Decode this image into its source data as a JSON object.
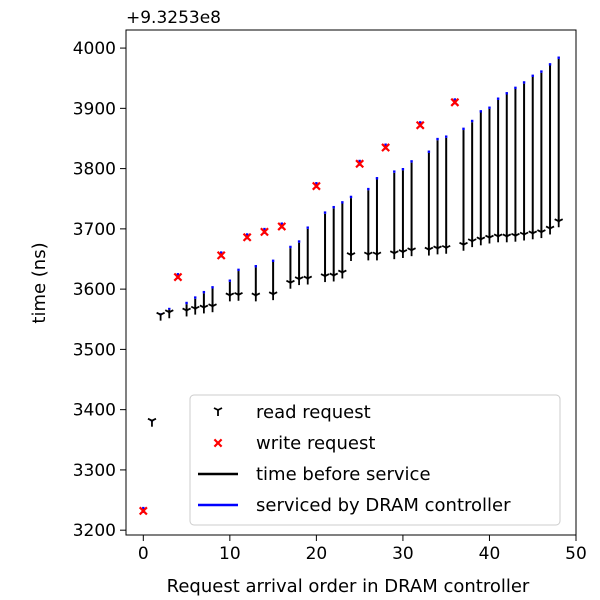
{
  "chart_data": {
    "type": "scatter",
    "title": "",
    "xlabel": "Request arrival order in DRAM controller",
    "ylabel": "time (ns)",
    "offset_label": "+9.3253e8",
    "xlim": [
      -2,
      50
    ],
    "ylim": [
      3192,
      4030
    ],
    "xticks": [
      0,
      10,
      20,
      30,
      40,
      50
    ],
    "yticks": [
      3200,
      3300,
      3400,
      3500,
      3600,
      3700,
      3800,
      3900,
      4000
    ],
    "grid": false,
    "legend_position": "lower-right",
    "legend": [
      {
        "label": "read request",
        "kind": "marker-read"
      },
      {
        "label": "write request",
        "kind": "marker-write"
      },
      {
        "label": "time before service",
        "kind": "line-black"
      },
      {
        "label": "serviced by DRAM controller",
        "kind": "line-blue"
      }
    ],
    "colors": {
      "read": "#000000",
      "write": "#ff0000",
      "wait_line": "#000000",
      "service_line": "#0000ff"
    },
    "read_requests": [
      {
        "x": 1,
        "arrival": 3380,
        "wait_end": 3380,
        "service_end": 3382
      },
      {
        "x": 2,
        "arrival": 3556,
        "wait_end": 3557,
        "service_end": 3560
      },
      {
        "x": 3,
        "arrival": 3560,
        "wait_end": 3566,
        "service_end": 3569
      },
      {
        "x": 5,
        "arrival": 3563,
        "wait_end": 3575,
        "service_end": 3579
      },
      {
        "x": 6,
        "arrival": 3566,
        "wait_end": 3584,
        "service_end": 3588
      },
      {
        "x": 7,
        "arrival": 3568,
        "wait_end": 3593,
        "service_end": 3597
      },
      {
        "x": 8,
        "arrival": 3570,
        "wait_end": 3601,
        "service_end": 3605
      },
      {
        "x": 10,
        "arrival": 3588,
        "wait_end": 3612,
        "service_end": 3616
      },
      {
        "x": 11,
        "arrival": 3589,
        "wait_end": 3630,
        "service_end": 3634
      },
      {
        "x": 13,
        "arrival": 3588,
        "wait_end": 3636,
        "service_end": 3640
      },
      {
        "x": 15,
        "arrival": 3590,
        "wait_end": 3645,
        "service_end": 3649
      },
      {
        "x": 17,
        "arrival": 3609,
        "wait_end": 3668,
        "service_end": 3672
      },
      {
        "x": 18,
        "arrival": 3615,
        "wait_end": 3677,
        "service_end": 3681
      },
      {
        "x": 19,
        "arrival": 3616,
        "wait_end": 3700,
        "service_end": 3704
      },
      {
        "x": 21,
        "arrival": 3620,
        "wait_end": 3725,
        "service_end": 3729
      },
      {
        "x": 22,
        "arrival": 3621,
        "wait_end": 3734,
        "service_end": 3738
      },
      {
        "x": 23,
        "arrival": 3626,
        "wait_end": 3742,
        "service_end": 3746
      },
      {
        "x": 24,
        "arrival": 3655,
        "wait_end": 3751,
        "service_end": 3755
      },
      {
        "x": 26,
        "arrival": 3656,
        "wait_end": 3764,
        "service_end": 3768
      },
      {
        "x": 27,
        "arrival": 3656,
        "wait_end": 3782,
        "service_end": 3786
      },
      {
        "x": 29,
        "arrival": 3658,
        "wait_end": 3793,
        "service_end": 3797
      },
      {
        "x": 30,
        "arrival": 3660,
        "wait_end": 3797,
        "service_end": 3801
      },
      {
        "x": 31,
        "arrival": 3663,
        "wait_end": 3810,
        "service_end": 3814
      },
      {
        "x": 33,
        "arrival": 3664,
        "wait_end": 3826,
        "service_end": 3830
      },
      {
        "x": 34,
        "arrival": 3666,
        "wait_end": 3847,
        "service_end": 3851
      },
      {
        "x": 35,
        "arrival": 3667,
        "wait_end": 3851,
        "service_end": 3855
      },
      {
        "x": 37,
        "arrival": 3672,
        "wait_end": 3864,
        "service_end": 3868
      },
      {
        "x": 38,
        "arrival": 3678,
        "wait_end": 3877,
        "service_end": 3881
      },
      {
        "x": 39,
        "arrival": 3681,
        "wait_end": 3893,
        "service_end": 3897
      },
      {
        "x": 40,
        "arrival": 3684,
        "wait_end": 3899,
        "service_end": 3903
      },
      {
        "x": 41,
        "arrival": 3686,
        "wait_end": 3914,
        "service_end": 3918
      },
      {
        "x": 42,
        "arrival": 3686,
        "wait_end": 3923,
        "service_end": 3927
      },
      {
        "x": 43,
        "arrival": 3687,
        "wait_end": 3932,
        "service_end": 3936
      },
      {
        "x": 44,
        "arrival": 3689,
        "wait_end": 3941,
        "service_end": 3945
      },
      {
        "x": 45,
        "arrival": 3691,
        "wait_end": 3952,
        "service_end": 3956
      },
      {
        "x": 46,
        "arrival": 3693,
        "wait_end": 3959,
        "service_end": 3963
      },
      {
        "x": 47,
        "arrival": 3699,
        "wait_end": 3971,
        "service_end": 3975
      },
      {
        "x": 48,
        "arrival": 3711,
        "wait_end": 3982,
        "service_end": 3986
      }
    ],
    "write_requests": [
      {
        "x": 0,
        "time": 3232
      },
      {
        "x": 4,
        "time": 3620
      },
      {
        "x": 9,
        "time": 3656
      },
      {
        "x": 12,
        "time": 3686
      },
      {
        "x": 14,
        "time": 3695
      },
      {
        "x": 16,
        "time": 3704
      },
      {
        "x": 20,
        "time": 3771
      },
      {
        "x": 25,
        "time": 3808
      },
      {
        "x": 28,
        "time": 3835
      },
      {
        "x": 32,
        "time": 3872
      },
      {
        "x": 36,
        "time": 3910
      }
    ]
  }
}
